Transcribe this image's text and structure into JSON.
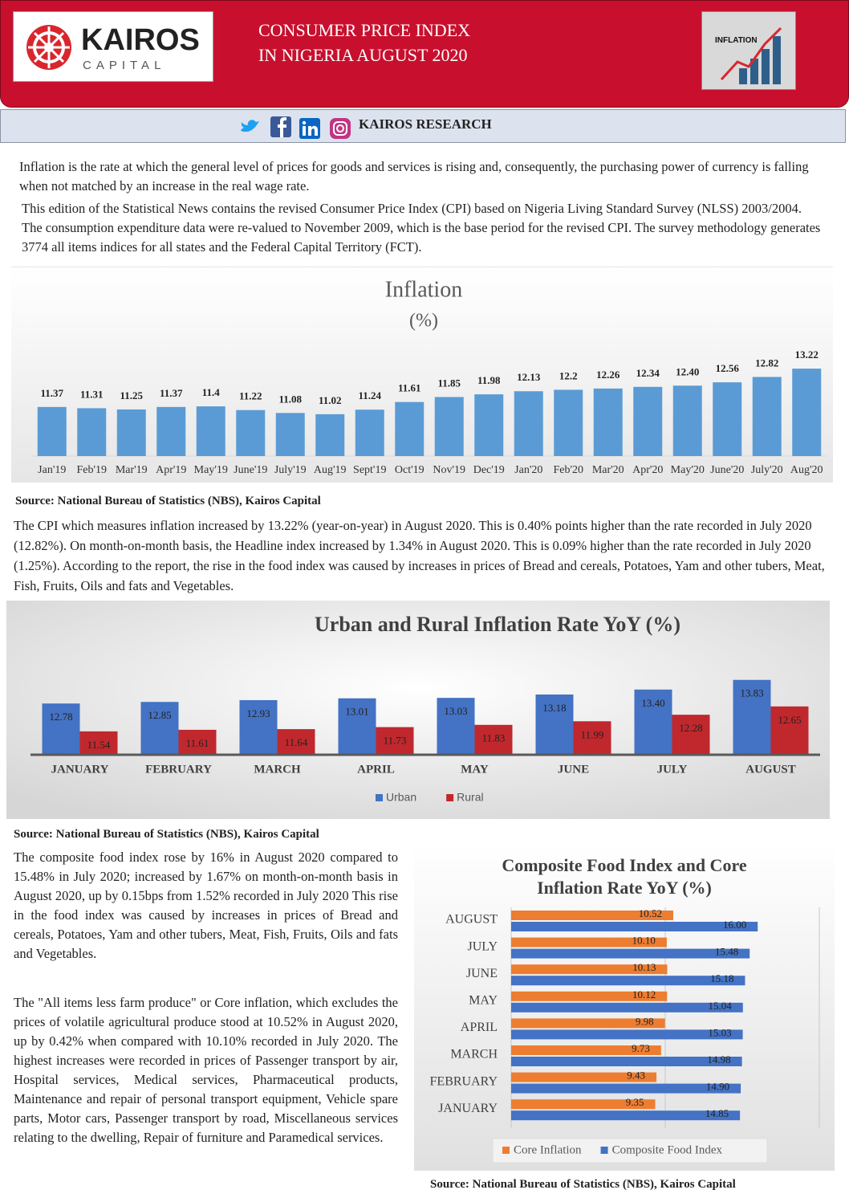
{
  "header": {
    "brand": "KAIROS",
    "brand_sub": "CAPITAL",
    "title_line1": "CONSUMER PRICE INDEX",
    "title_line2": "IN NIGERIA AUGUST 2020",
    "icon_text": "INFLATION"
  },
  "social": {
    "label": "KAIROS RESEARCH"
  },
  "paragraphs": [
    "Inflation is the rate at which the general level of prices for goods and services is rising and, consequently, the purchasing power of currency is falling when not matched by an increase in the real wage rate.",
    "This edition of the Statistical News contains the revised Consumer Price Index (CPI) based on Nigeria Living Standard Survey (NLSS) 2003/2004.  The consumption expenditure data were re-valued to November 2009, which is the base period for the revised CPI. The survey methodology generates 3774 all items indices for all states and the Federal Capital Territory (FCT).",
    "The CPI which measures inflation increased by 13.22% (year-on-year) in August 2020. This is 0.40% points higher than the rate recorded in July 2020 (12.82%). On month-on-month basis, the Headline index increased by 1.34% in August 2020. This is 0.09% higher than the rate recorded in July 2020 (1.25%). According to the report, the rise in the food index was caused by increases in prices of Bread and cereals, Potatoes, Yam and other tubers, Meat, Fish, Fruits, Oils and fats and Vegetables.",
    "The composite food index rose by 16% in August 2020 compared to 15.48% in July 2020; increased by 1.67% on month-on-month basis in August 2020, up by 0.15bps from 1.52% recorded in July 2020  This rise in the food index was caused by increases in prices of Bread and cereals, Potatoes, Yam and other tubers, Meat, Fish, Fruits, Oils and fats and Vegetables.",
    "The \"All items less farm produce\" or Core inflation, which excludes the prices of volatile agricultural produce stood at 10.52% in August 2020, up by 0.42% when compared with 10.10% recorded in July 2020. The highest increases were recorded in prices of Passenger transport by air, Hospital services, Medical services, Pharmaceutical products, Maintenance and repair of personal transport equipment, Vehicle spare parts, Motor cars, Passenger transport by road, Miscellaneous services relating to the dwelling, Repair of furniture and Paramedical services."
  ],
  "sources": [
    "Source: National Bureau of Statistics (NBS), Kairos Capital",
    "Source: National Bureau of Statistics (NBS), Kairos Capital",
    "Source: National Bureau of Statistics (NBS), Kairos Capital"
  ],
  "chart_data": [
    {
      "type": "bar",
      "title": "Inflation",
      "subtitle": "(%)",
      "color": "#5b9bd5",
      "ylim": [
        9,
        14
      ],
      "categories": [
        "Jan'19",
        "Feb'19",
        "Mar'19",
        "Apr'19",
        "May'19",
        "June'19",
        "July'19",
        "Aug'19",
        "Sept'19",
        "Oct'19",
        "Nov'19",
        "Dec'19",
        "Jan'20",
        "Feb'20",
        "Mar'20",
        "Apr'20",
        "May'20",
        "June'20",
        "July'20",
        "Aug'20"
      ],
      "values": [
        11.37,
        11.31,
        11.25,
        11.37,
        11.4,
        11.22,
        11.08,
        11.02,
        11.24,
        11.61,
        11.85,
        11.98,
        12.13,
        12.2,
        12.26,
        12.34,
        12.4,
        12.56,
        12.82,
        13.22
      ],
      "value_labels": [
        "11.37",
        "11.31",
        "11.25",
        "11.37",
        "11.4",
        "11.22",
        "11.08",
        "11.02",
        "11.24",
        "11.61",
        "11.85",
        "11.98",
        "12.13",
        "12.2",
        "12.26",
        "12.34",
        "12.40",
        "12.56",
        "12.82",
        "13.22"
      ]
    },
    {
      "type": "grouped-bar",
      "title": "Urban and Rural Inflation Rate YoY (%)",
      "ylim": [
        10.5,
        14.5
      ],
      "legend": "bottom",
      "categories": [
        "JANUARY",
        "FEBRUARY",
        "MARCH",
        "APRIL",
        "MAY",
        "JUNE",
        "JULY",
        "AUGUST"
      ],
      "series": [
        {
          "name": "Urban",
          "color": "#4472c4",
          "values": [
            12.78,
            12.85,
            12.93,
            13.01,
            13.03,
            13.18,
            13.4,
            13.83
          ],
          "value_labels": [
            "12.78",
            "12.85",
            "12.93",
            "13.01",
            "13.03",
            "13.18",
            "13.40",
            "13.83"
          ]
        },
        {
          "name": "Rural",
          "color": "#c0282d",
          "values": [
            11.54,
            11.61,
            11.64,
            11.73,
            11.83,
            11.99,
            12.28,
            12.65
          ],
          "value_labels": [
            "11.54",
            "11.61",
            "11.64",
            "11.73",
            "11.83",
            "11.99",
            "12.28",
            "12.65"
          ]
        }
      ]
    },
    {
      "type": "horizontal-bar",
      "title": "Composite Food Index and Core Inflation Rate YoY (%)",
      "xlim": [
        0,
        20
      ],
      "xticks": [
        0,
        10,
        20
      ],
      "grid": true,
      "legend": "bottom",
      "categories": [
        "AUGUST",
        "JULY",
        "JUNE",
        "MAY",
        "APRIL",
        "MARCH",
        "FEBRUARY",
        "JANUARY"
      ],
      "series": [
        {
          "name": "Core Inflation",
          "color": "#ed7d31",
          "values": [
            10.52,
            10.1,
            10.13,
            10.12,
            9.98,
            9.73,
            9.43,
            9.35
          ],
          "value_labels": [
            "10.52",
            "10.10",
            "10.13",
            "10.12",
            "9.98",
            "9.73",
            "9.43",
            "9.35"
          ]
        },
        {
          "name": "Composite Food Index",
          "color": "#4472c4",
          "values": [
            16,
            15.48,
            15.18,
            15.04,
            15.03,
            14.98,
            14.9,
            14.85
          ],
          "value_labels": [
            "16.00",
            "15.48",
            "15.18",
            "15.04",
            "15.03",
            "14.98",
            "14.90",
            "14.85"
          ]
        }
      ]
    }
  ]
}
